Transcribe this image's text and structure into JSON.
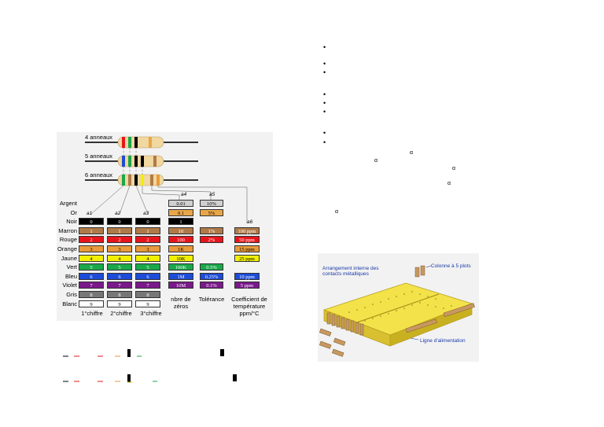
{
  "resistor_figure": {
    "ring_labels": [
      "4 anneaux",
      "5 anneaux",
      "6 anneaux"
    ],
    "column_annotations": [
      "a1",
      "a2",
      "a3",
      "a4",
      "a5",
      "a6"
    ],
    "rows": [
      {
        "name": "Argent",
        "color": "#d0d0d0",
        "text_color": "#000",
        "digits": [
          "",
          "",
          ""
        ],
        "multiplier": "0.01",
        "tolerance": "10%",
        "tempco": ""
      },
      {
        "name": "Or",
        "color": "#e8a64a",
        "text_color": "#000",
        "digits": [
          "",
          "",
          ""
        ],
        "multiplier": "0.1",
        "tolerance": "5%",
        "tempco": ""
      },
      {
        "name": "Noir",
        "color": "#000000",
        "text_color": "#fff",
        "digits": [
          "0",
          "0",
          "0"
        ],
        "multiplier": "1",
        "tolerance": "",
        "tempco": ""
      },
      {
        "name": "Marron",
        "color": "#b07a48",
        "text_color": "#fff",
        "digits": [
          "1",
          "1",
          "1"
        ],
        "multiplier": "10",
        "tolerance": "1%",
        "tempco": "100 ppm"
      },
      {
        "name": "Rouge",
        "color": "#e8141c",
        "text_color": "#fff",
        "digits": [
          "2",
          "2",
          "2"
        ],
        "multiplier": "100",
        "tolerance": "2%",
        "tempco": "50 ppm"
      },
      {
        "name": "Orange",
        "color": "#e89a3c",
        "text_color": "#000",
        "digits": [
          "3",
          "3",
          "3"
        ],
        "multiplier": "1K",
        "tolerance": "",
        "tempco": "15 ppm"
      },
      {
        "name": "Jaune",
        "color": "#f2f000",
        "text_color": "#000",
        "digits": [
          "4",
          "4",
          "4"
        ],
        "multiplier": "10K",
        "tolerance": "",
        "tempco": "25 ppm"
      },
      {
        "name": "Vert",
        "color": "#1aa84a",
        "text_color": "#fff",
        "digits": [
          "5",
          "5",
          "5"
        ],
        "multiplier": "100K",
        "tolerance": "0.5%",
        "tempco": ""
      },
      {
        "name": "Bleu",
        "color": "#1c4cd8",
        "text_color": "#fff",
        "digits": [
          "6",
          "6",
          "6"
        ],
        "multiplier": "1M",
        "tolerance": "0.25%",
        "tempco": "10 ppm"
      },
      {
        "name": "Violet",
        "color": "#7a1a8a",
        "text_color": "#fff",
        "digits": [
          "7",
          "7",
          "7"
        ],
        "multiplier": "10M",
        "tolerance": "0.1%",
        "tempco": "5 ppm"
      },
      {
        "name": "Gris",
        "color": "#777777",
        "text_color": "#fff",
        "digits": [
          "8",
          "8",
          "8"
        ],
        "multiplier": "",
        "tolerance": "",
        "tempco": ""
      },
      {
        "name": "Blanc",
        "color": "#ffffff",
        "text_color": "#000",
        "digits": [
          "9",
          "9",
          "9"
        ],
        "multiplier": "",
        "tolerance": "",
        "tempco": ""
      }
    ],
    "footer": {
      "digit1": "1°chiffre",
      "digit2": "2°chiffre",
      "digit3": "3°chiffre",
      "zeros": "nbre de zéros",
      "tolerance": "Tolérance",
      "tempco": "Coefficient de température ppm/°C"
    }
  },
  "right_column": {
    "bullet_char": "•",
    "alpha_char": "α"
  },
  "breadboard": {
    "label_internal": "Arrangement interne des contacts métalliques",
    "label_column": "Colonne à 5 plots",
    "label_power": "Ligne d'alimentation"
  }
}
